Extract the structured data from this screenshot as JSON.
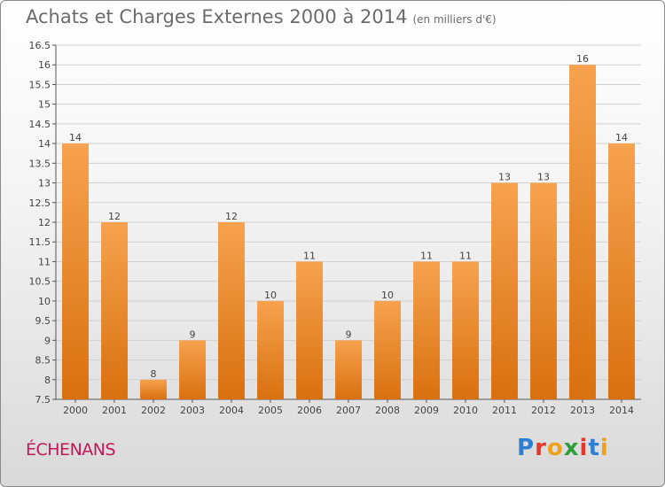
{
  "header": {
    "title": "Achats et Charges Externes 2000 à 2014",
    "unit": "(en milliers d'€)"
  },
  "footer": {
    "commune": "ÉCHENANS",
    "logo": {
      "letters": [
        "P",
        "r",
        "o",
        "x",
        "i",
        "t",
        "i"
      ],
      "colors": [
        "#2e7fd4",
        "#e5382b",
        "#f0a11c",
        "#2e9e3a",
        "#e5382b",
        "#2e7fd4",
        "#f0a11c"
      ]
    }
  },
  "colors": {
    "bar_top": "#f7a24e",
    "bar_bottom": "#d9700f",
    "axis": "#555555",
    "grid": "#d0d0d0"
  },
  "chart_data": {
    "type": "bar",
    "title": "Achats et Charges Externes 2000 à 2014",
    "categories": [
      "2000",
      "2001",
      "2002",
      "2003",
      "2004",
      "2005",
      "2006",
      "2007",
      "2008",
      "2009",
      "2010",
      "2011",
      "2012",
      "2013",
      "2014"
    ],
    "values": [
      14,
      12,
      8,
      9,
      12,
      10,
      11,
      9,
      10,
      11,
      11,
      13,
      13,
      16,
      14
    ],
    "value_labels": [
      "14",
      "12",
      "8",
      "9",
      "12",
      "10",
      "11",
      "9",
      "10",
      "11",
      "11",
      "13",
      "13",
      "16",
      "14"
    ],
    "ylim": [
      7.5,
      16.5
    ],
    "yticks": [
      "7.5",
      "8",
      "8.5",
      "9",
      "9.5",
      "10",
      "10.5",
      "11",
      "11.5",
      "12",
      "12.5",
      "13",
      "13.5",
      "14",
      "14.5",
      "15",
      "15.5",
      "16",
      "16.5"
    ],
    "grid": true,
    "legend": "none"
  }
}
